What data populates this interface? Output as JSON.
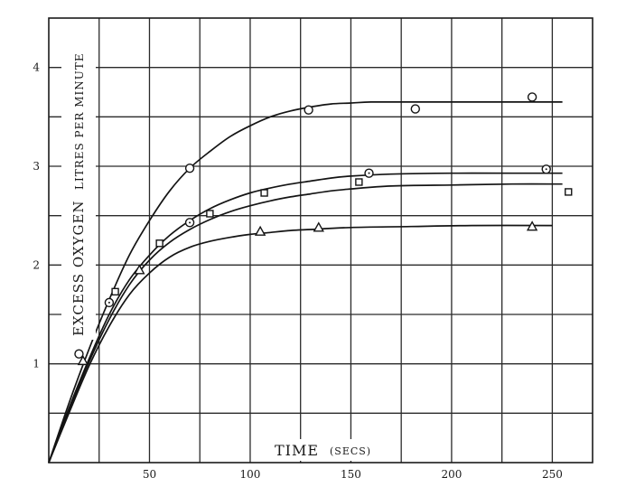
{
  "chart_data": {
    "type": "line",
    "title": "",
    "xlabel": "TIME",
    "xlabel_unit": "(SECS)",
    "ylabel_main": "EXCESS OXYGEN",
    "ylabel_sub": "LITRES PER MINUTE",
    "xlim": [
      0,
      270
    ],
    "ylim": [
      0,
      4.5
    ],
    "x_ticks": [
      50,
      100,
      150,
      200,
      250
    ],
    "y_ticks": [
      1,
      2,
      3,
      4
    ],
    "grid": true,
    "legend": "none",
    "series": [
      {
        "marker": "circle",
        "curve": [
          [
            0,
            0
          ],
          [
            10,
            0.6
          ],
          [
            20,
            1.15
          ],
          [
            30,
            1.65
          ],
          [
            40,
            2.1
          ],
          [
            50,
            2.45
          ],
          [
            60,
            2.75
          ],
          [
            70,
            2.98
          ],
          [
            80,
            3.15
          ],
          [
            90,
            3.3
          ],
          [
            100,
            3.41
          ],
          [
            110,
            3.5
          ],
          [
            120,
            3.56
          ],
          [
            130,
            3.6
          ],
          [
            140,
            3.63
          ],
          [
            150,
            3.64
          ],
          [
            160,
            3.65
          ],
          [
            180,
            3.65
          ],
          [
            200,
            3.65
          ],
          [
            220,
            3.65
          ],
          [
            240,
            3.65
          ],
          [
            255,
            3.65
          ]
        ],
        "points": [
          [
            15,
            1.1
          ],
          [
            70,
            2.98
          ],
          [
            129,
            3.57
          ],
          [
            182,
            3.58
          ],
          [
            240,
            3.7
          ]
        ]
      },
      {
        "marker": "circle-dot",
        "curve": [
          [
            0,
            0
          ],
          [
            10,
            0.55
          ],
          [
            20,
            1.05
          ],
          [
            30,
            1.5
          ],
          [
            40,
            1.85
          ],
          [
            50,
            2.1
          ],
          [
            60,
            2.3
          ],
          [
            70,
            2.45
          ],
          [
            80,
            2.57
          ],
          [
            90,
            2.66
          ],
          [
            100,
            2.73
          ],
          [
            110,
            2.78
          ],
          [
            120,
            2.82
          ],
          [
            130,
            2.85
          ],
          [
            140,
            2.88
          ],
          [
            150,
            2.9
          ],
          [
            170,
            2.92
          ],
          [
            200,
            2.93
          ],
          [
            230,
            2.93
          ],
          [
            255,
            2.93
          ]
        ],
        "points": [
          [
            30,
            1.62
          ],
          [
            70,
            2.43
          ],
          [
            159,
            2.93
          ],
          [
            247,
            2.97
          ]
        ]
      },
      {
        "marker": "square",
        "curve": [
          [
            0,
            0
          ],
          [
            10,
            0.53
          ],
          [
            20,
            1.02
          ],
          [
            30,
            1.45
          ],
          [
            40,
            1.8
          ],
          [
            50,
            2.05
          ],
          [
            60,
            2.23
          ],
          [
            70,
            2.36
          ],
          [
            80,
            2.46
          ],
          [
            90,
            2.54
          ],
          [
            100,
            2.6
          ],
          [
            110,
            2.65
          ],
          [
            120,
            2.69
          ],
          [
            130,
            2.72
          ],
          [
            140,
            2.75
          ],
          [
            150,
            2.77
          ],
          [
            170,
            2.8
          ],
          [
            200,
            2.81
          ],
          [
            230,
            2.82
          ],
          [
            255,
            2.82
          ]
        ],
        "points": [
          [
            33,
            1.73
          ],
          [
            55,
            2.22
          ],
          [
            80,
            2.52
          ],
          [
            107,
            2.73
          ],
          [
            154,
            2.84
          ],
          [
            258,
            2.74
          ]
        ]
      },
      {
        "marker": "triangle",
        "curve": [
          [
            0,
            0
          ],
          [
            10,
            0.5
          ],
          [
            20,
            0.98
          ],
          [
            30,
            1.38
          ],
          [
            40,
            1.7
          ],
          [
            50,
            1.92
          ],
          [
            60,
            2.08
          ],
          [
            70,
            2.18
          ],
          [
            80,
            2.24
          ],
          [
            90,
            2.28
          ],
          [
            100,
            2.31
          ],
          [
            110,
            2.33
          ],
          [
            120,
            2.35
          ],
          [
            130,
            2.36
          ],
          [
            150,
            2.38
          ],
          [
            180,
            2.39
          ],
          [
            210,
            2.4
          ],
          [
            250,
            2.4
          ]
        ],
        "points": [
          [
            17,
            1.03
          ],
          [
            45,
            1.95
          ],
          [
            105,
            2.34
          ],
          [
            134,
            2.38
          ],
          [
            240,
            2.39
          ]
        ]
      }
    ]
  }
}
